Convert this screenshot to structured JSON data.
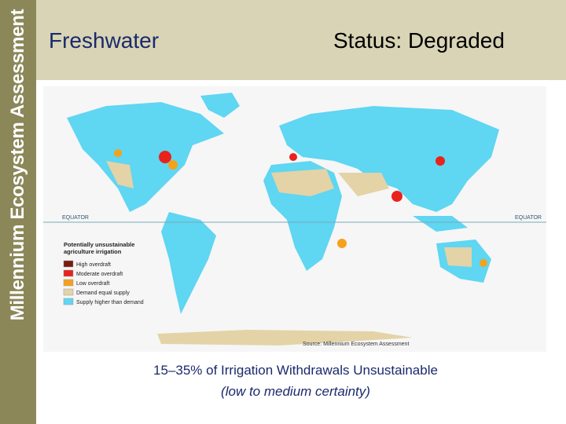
{
  "sidebar": {
    "brand": "Millennium Ecosystem Assessment"
  },
  "header": {
    "title": "Freshwater",
    "status": "Status: Degraded"
  },
  "map": {
    "equator_left": "EQUATOR",
    "equator_right": "EQUATOR",
    "legend": {
      "title_line1": "Potentially unsustainable",
      "title_line2": "agriculture irrigation",
      "items": [
        {
          "label": "High overdraft",
          "color": "#7a1a10"
        },
        {
          "label": "Moderate overdraft",
          "color": "#e8231c"
        },
        {
          "label": "Low overdraft",
          "color": "#f5a21a"
        },
        {
          "label": "Demand equal supply",
          "color": "#e3d3a7"
        },
        {
          "label": "Supply higher than demand",
          "color": "#5fd6f2"
        }
      ]
    },
    "source": "Source: Millennium Ecosystem Assessment"
  },
  "caption": {
    "line1": "15–35% of Irrigation Withdrawals Unsustainable",
    "line2": "(low to medium certainty)"
  }
}
